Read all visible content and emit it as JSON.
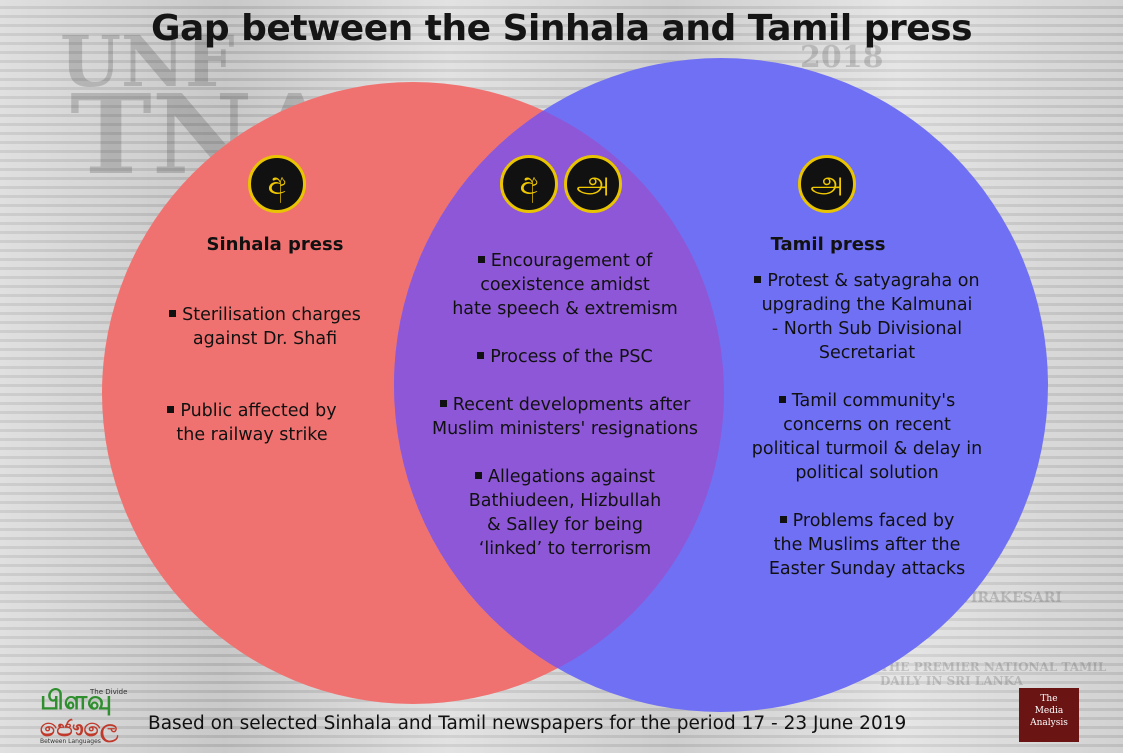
{
  "title": "Gap between the Sinhala and Tamil press",
  "left": {
    "heading": "Sinhala press",
    "badge_glyph": "අ",
    "items": [
      {
        "l1": "Sterilisation charges",
        "l2": "against Dr. Shafi"
      },
      {
        "l1": "Public affected by",
        "l2": "the railway strike"
      }
    ]
  },
  "center": {
    "badge_glyph_1": "අ",
    "badge_glyph_2": "அ",
    "items": [
      {
        "l1": "Encouragement of",
        "l2": "coexistence amidst",
        "l3": "hate speech & extremism"
      },
      {
        "l1": "Process of the PSC"
      },
      {
        "l1": "Recent developments after",
        "l2": "Muslim ministers' resignations"
      },
      {
        "l1": "Allegations against",
        "l2": "Bathiudeen, Hizbullah",
        "l3": "& Salley for being",
        "l4": "‘linked’ to terrorism"
      }
    ]
  },
  "right": {
    "heading": "Tamil press",
    "badge_glyph": "அ",
    "items": [
      {
        "l1": "Protest & satyagraha on",
        "l2": "upgrading the Kalmunai",
        "l3": "- North Sub Divisional",
        "l4": "Secretariat"
      },
      {
        "l1": "Tamil community's",
        "l2": "concerns on recent",
        "l3": "political turmoil & delay in",
        "l4": "political solution"
      },
      {
        "l1": "Problems faced by",
        "l2": "the Muslims after the",
        "l3": "Easter Sunday attacks"
      }
    ]
  },
  "footer": "Based on selected Sinhala and Tamil newspapers for the period 17 - 23 June 2019",
  "logos": {
    "left_line1": "பிளவு",
    "left_line2": "ජෞලෙ",
    "left_tag1": "The Divide",
    "left_tag2": "Between Languages",
    "right_line1": "The",
    "right_line2": "Media",
    "right_line3": "Analysis"
  },
  "colors": {
    "left_circle": "#f07270",
    "right_circle": "#7070f5",
    "overlap": "#8e57d8",
    "badge_border": "#e9c400",
    "badge_text": "#f0c800"
  }
}
